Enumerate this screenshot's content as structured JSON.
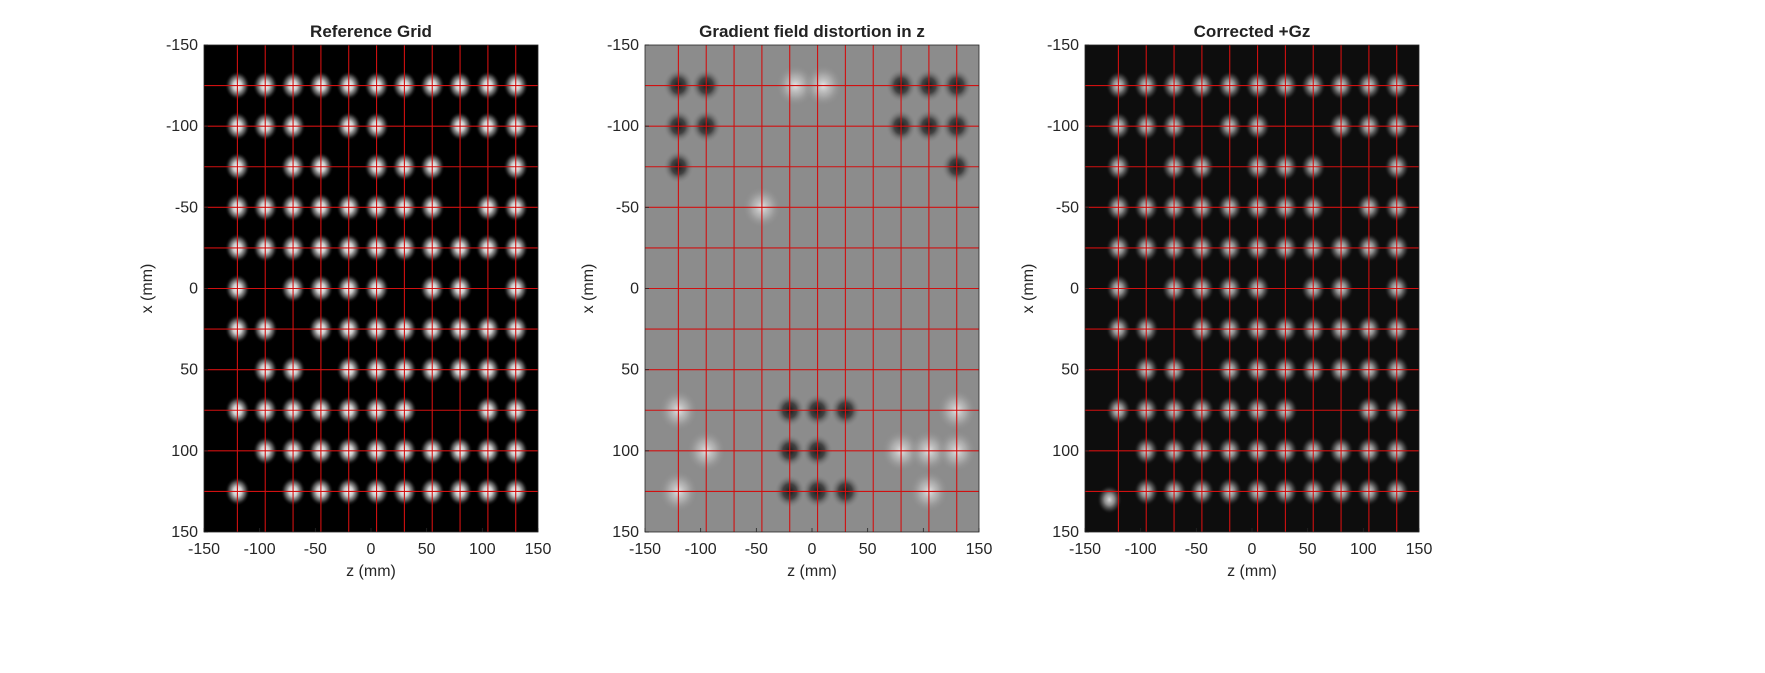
{
  "chart_data": [
    {
      "type": "heatmap",
      "title": "Reference Grid",
      "xlabel": "z (mm)",
      "ylabel": "x (mm)",
      "xlim": [
        -150,
        150
      ],
      "ylim": [
        -150,
        150
      ],
      "y_reversed": true,
      "xticks": [
        -150,
        -100,
        -50,
        0,
        50,
        100,
        150
      ],
      "yticks": [
        -150,
        -100,
        -50,
        0,
        50,
        100,
        150
      ],
      "background": "#000000",
      "grid_lines_color": "#d01010",
      "grid_lines_z": [
        -120,
        -95,
        -70,
        -45,
        -20,
        5,
        30,
        55,
        80,
        105,
        130
      ],
      "grid_lines_x": [
        -125,
        -100,
        -75,
        -50,
        -25,
        0,
        25,
        50,
        75,
        100,
        125
      ],
      "markers": [
        {
          "x": -125,
          "z": [
            -120,
            -95,
            -70,
            -45,
            -20,
            5,
            30,
            55,
            80,
            105,
            130
          ]
        },
        {
          "x": -100,
          "z": [
            -120,
            -95,
            -70,
            -20,
            5,
            80,
            105,
            130
          ]
        },
        {
          "x": -75,
          "z": [
            -120,
            -70,
            -45,
            5,
            30,
            55,
            130
          ]
        },
        {
          "x": -50,
          "z": [
            -120,
            -95,
            -70,
            -45,
            -20,
            5,
            30,
            55,
            105,
            130
          ]
        },
        {
          "x": -25,
          "z": [
            -120,
            -95,
            -70,
            -45,
            -20,
            5,
            30,
            55,
            80,
            105,
            130
          ]
        },
        {
          "x": 0,
          "z": [
            -120,
            -70,
            -45,
            -20,
            5,
            55,
            80,
            130
          ]
        },
        {
          "x": 25,
          "z": [
            -120,
            -95,
            -45,
            -20,
            5,
            30,
            55,
            80,
            105,
            130
          ]
        },
        {
          "x": 50,
          "z": [
            -95,
            -70,
            -20,
            5,
            30,
            55,
            80,
            105,
            130
          ]
        },
        {
          "x": 75,
          "z": [
            -120,
            -95,
            -70,
            -45,
            -20,
            5,
            30,
            105,
            130
          ]
        },
        {
          "x": 100,
          "z": [
            -95,
            -70,
            -45,
            -20,
            5,
            30,
            55,
            80,
            105,
            130
          ]
        },
        {
          "x": 125,
          "z": [
            -120,
            -70,
            -45,
            -20,
            5,
            30,
            55,
            80,
            105,
            130
          ]
        }
      ]
    },
    {
      "type": "heatmap",
      "title": "Gradient field distortion in z",
      "xlabel": "z (mm)",
      "ylabel": "x (mm)",
      "xlim": [
        -150,
        150
      ],
      "ylim": [
        -150,
        150
      ],
      "y_reversed": true,
      "xticks": [
        -150,
        -100,
        -50,
        0,
        50,
        100,
        150
      ],
      "yticks": [
        -150,
        -100,
        -50,
        0,
        50,
        100,
        150
      ],
      "background": "#8c8c8c",
      "grid_lines_color": "#d01010",
      "grid_lines_z": [
        -120,
        -95,
        -70,
        -45,
        -20,
        5,
        30,
        55,
        80,
        105,
        130
      ],
      "grid_lines_x": [
        -125,
        -100,
        -75,
        -50,
        -25,
        0,
        25,
        50,
        75,
        100,
        125
      ],
      "dark_spots": [
        {
          "x": -125,
          "z": [
            -120,
            -95,
            80,
            105,
            130
          ]
        },
        {
          "x": -100,
          "z": [
            -120,
            -95,
            80,
            105,
            130
          ]
        },
        {
          "x": -75,
          "z": [
            -120,
            130
          ]
        },
        {
          "x": 75,
          "z": [
            -20,
            5,
            30
          ]
        },
        {
          "x": 100,
          "z": [
            -20,
            5
          ]
        },
        {
          "x": 125,
          "z": [
            -20,
            5,
            30
          ]
        }
      ],
      "bright_spots": [
        {
          "x": -125,
          "z": [
            -15,
            10
          ]
        },
        {
          "x": -50,
          "z": [
            -45
          ]
        },
        {
          "x": 75,
          "z": [
            -120,
            130
          ]
        },
        {
          "x": 100,
          "z": [
            -95,
            80,
            105,
            130
          ]
        },
        {
          "x": 125,
          "z": [
            -120,
            105
          ]
        }
      ]
    },
    {
      "type": "heatmap",
      "title": "Corrected +Gz",
      "xlabel": "z (mm)",
      "ylabel": "x (mm)",
      "xlim": [
        -150,
        150
      ],
      "ylim": [
        -150,
        150
      ],
      "y_reversed": true,
      "xticks": [
        -150,
        -100,
        -50,
        0,
        50,
        100,
        150
      ],
      "yticks": [
        -150,
        -100,
        -50,
        0,
        50,
        100,
        150
      ],
      "background": "#0d0d0d",
      "grid_lines_color": "#d01010",
      "grid_lines_z": [
        -120,
        -95,
        -70,
        -45,
        -20,
        5,
        30,
        55,
        80,
        105,
        130
      ],
      "grid_lines_x": [
        -125,
        -100,
        -75,
        -50,
        -25,
        0,
        25,
        50,
        75,
        100,
        125
      ],
      "markers": [
        {
          "x": -125,
          "z": [
            -120,
            -95,
            -70,
            -45,
            -20,
            5,
            30,
            55,
            80,
            105,
            130
          ]
        },
        {
          "x": -100,
          "z": [
            -120,
            -95,
            -70,
            -20,
            5,
            80,
            105,
            130
          ]
        },
        {
          "x": -75,
          "z": [
            -120,
            -70,
            -45,
            5,
            30,
            55,
            130
          ]
        },
        {
          "x": -50,
          "z": [
            -120,
            -95,
            -70,
            -45,
            -20,
            5,
            30,
            55,
            105,
            130
          ]
        },
        {
          "x": -25,
          "z": [
            -120,
            -95,
            -70,
            -45,
            -20,
            5,
            30,
            55,
            80,
            105,
            130
          ]
        },
        {
          "x": 0,
          "z": [
            -120,
            -70,
            -45,
            -20,
            5,
            55,
            80,
            130
          ]
        },
        {
          "x": 25,
          "z": [
            -120,
            -95,
            -45,
            -20,
            5,
            30,
            55,
            80,
            105,
            130
          ]
        },
        {
          "x": 50,
          "z": [
            -95,
            -70,
            -20,
            5,
            30,
            55,
            80,
            105,
            130
          ]
        },
        {
          "x": 75,
          "z": [
            -120,
            -95,
            -70,
            -45,
            -20,
            5,
            30,
            105,
            130
          ]
        },
        {
          "x": 100,
          "z": [
            -95,
            -70,
            -45,
            -20,
            5,
            30,
            55,
            80,
            105,
            130
          ]
        },
        {
          "x": 125,
          "z": [
            -95,
            -70,
            -45,
            -20,
            5,
            30,
            55,
            80,
            105,
            130
          ]
        },
        {
          "x": 130,
          "z": [
            -128
          ]
        }
      ]
    }
  ]
}
